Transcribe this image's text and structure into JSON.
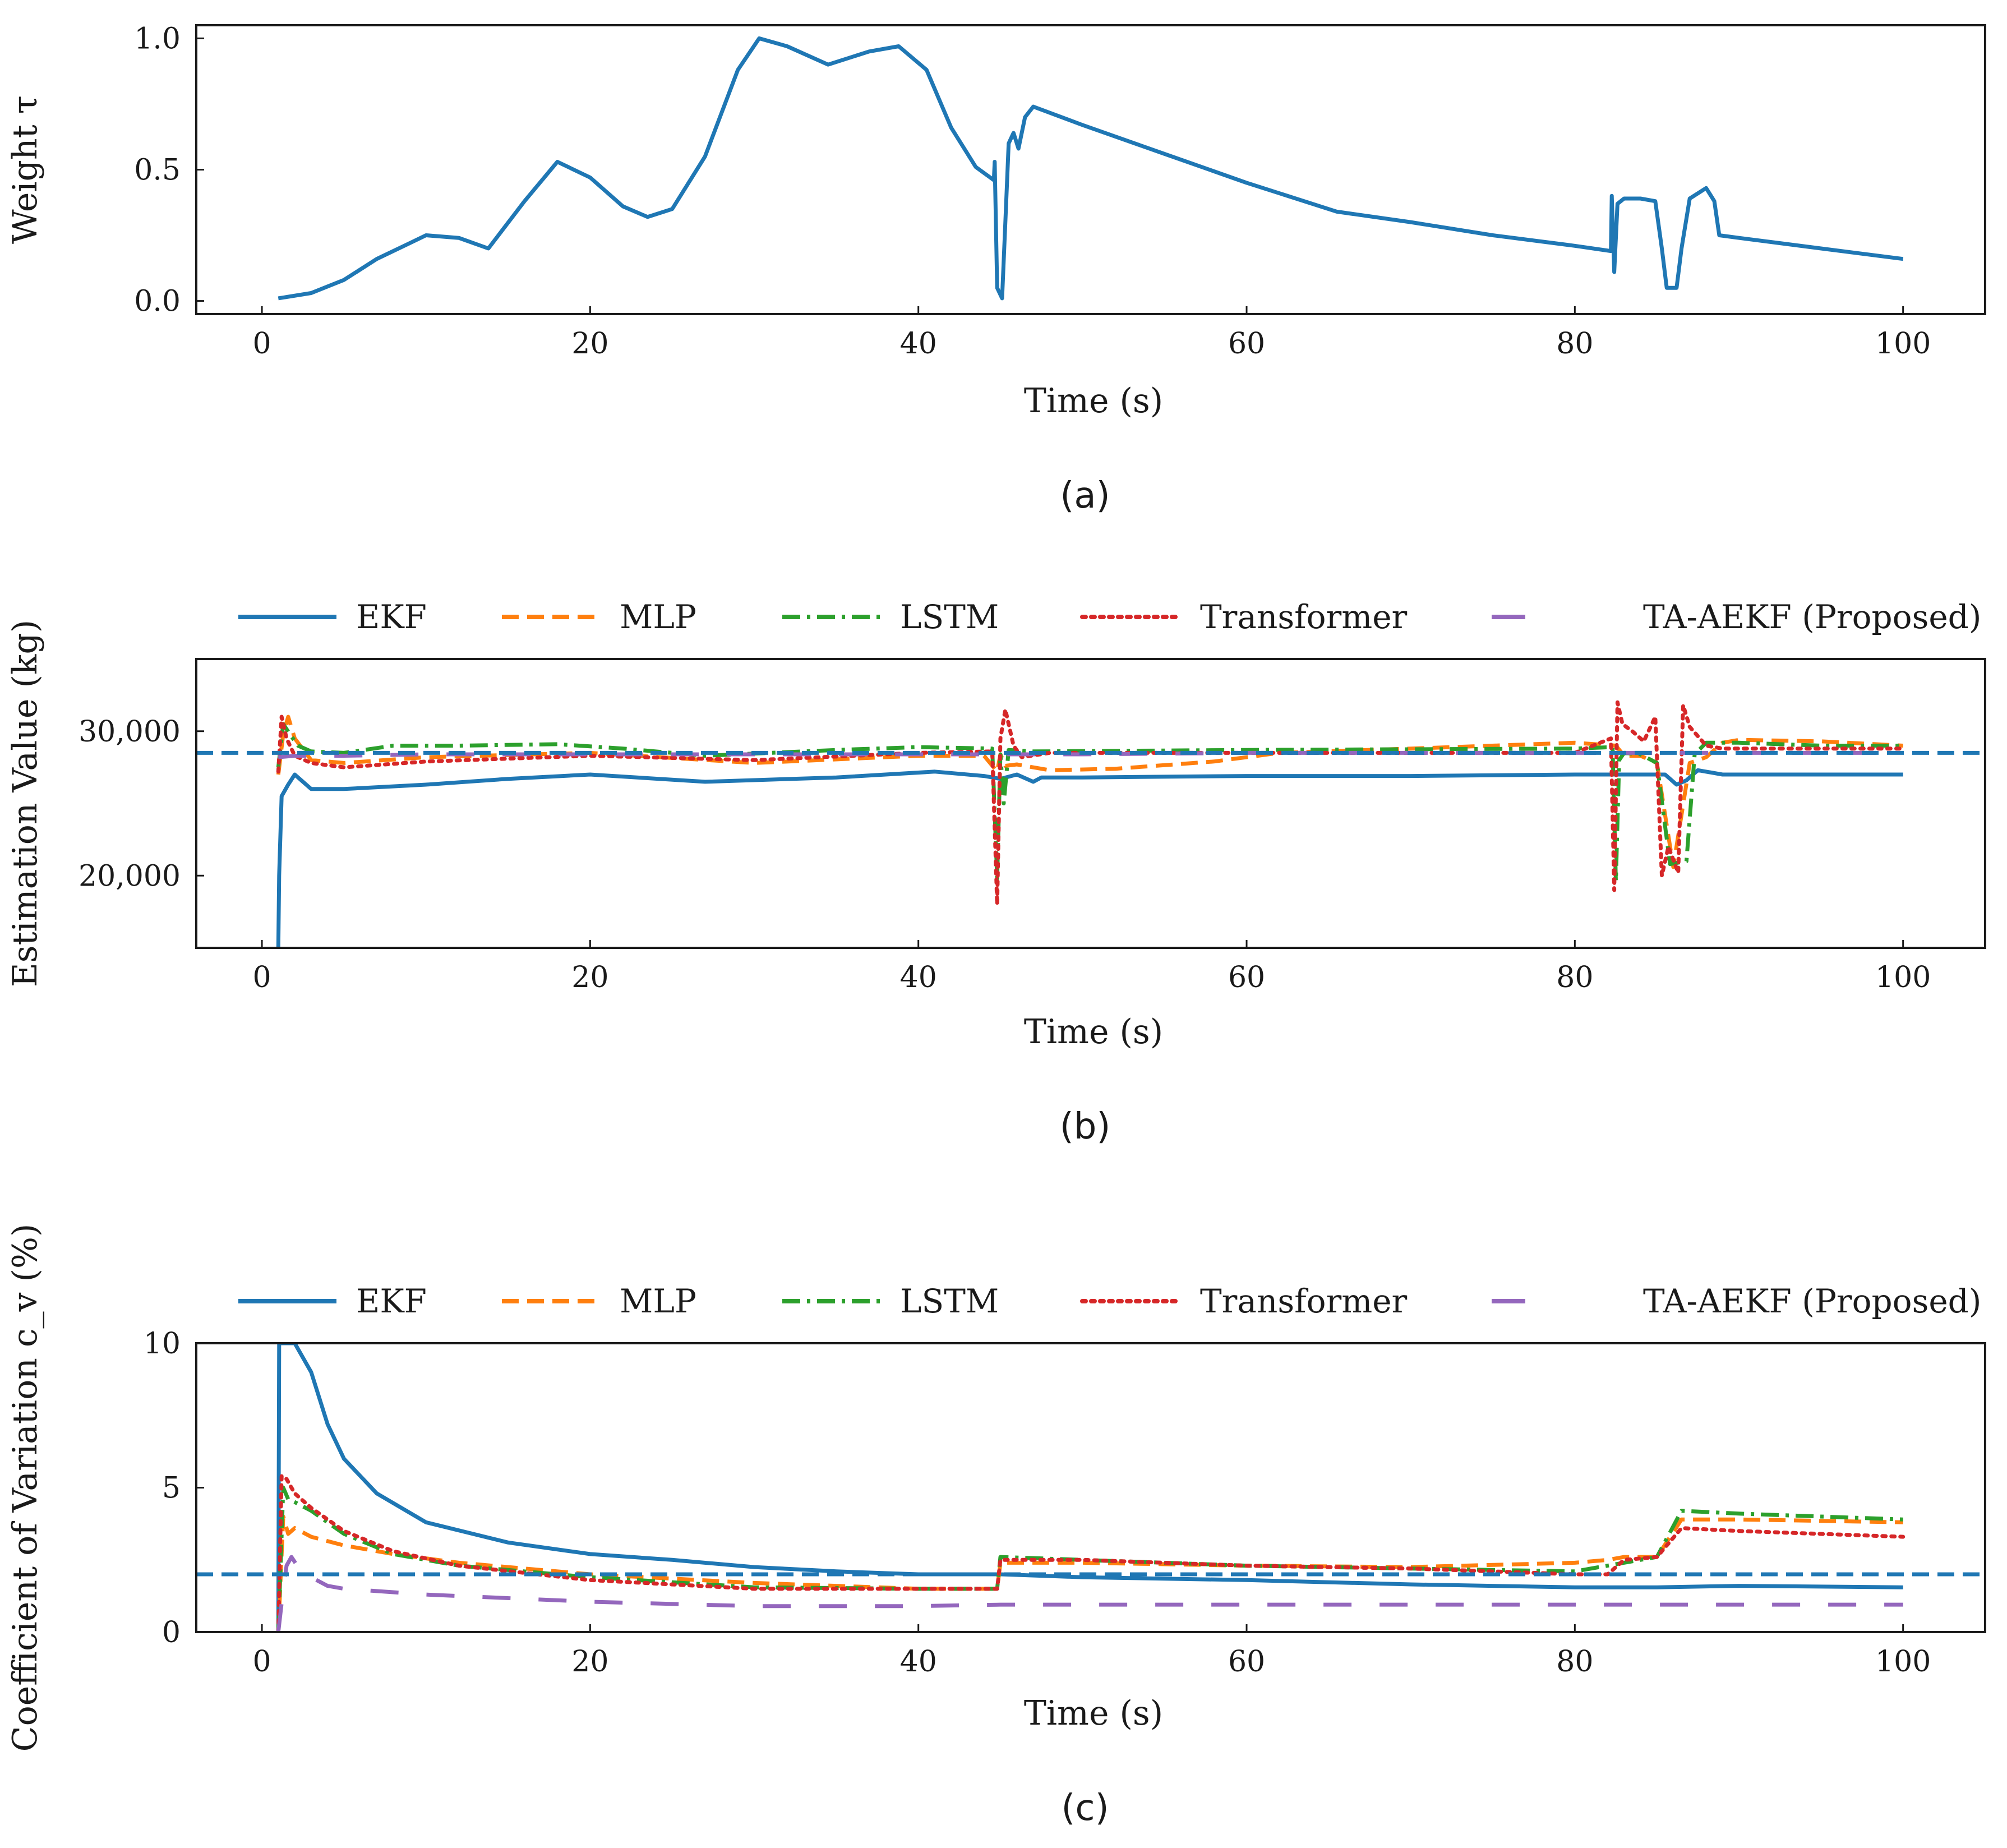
{
  "colors": {
    "EKF": "#1f77b4",
    "MLP": "#ff7f0e",
    "LSTM": "#2ca02c",
    "Transformer": "#d62728",
    "TA-AEKF (Proposed)": "#9467bd"
  },
  "legend": [
    "EKF",
    "MLP",
    "LSTM",
    "Transformer",
    "TA-AEKF (Proposed)"
  ],
  "chart_data": [
    {
      "id": "a",
      "type": "line",
      "panel_label": "(a)",
      "title": "",
      "xlabel": "Time (s)",
      "ylabel": "Weight τ",
      "xlim": [
        -4,
        105
      ],
      "ylim": [
        -0.05,
        1.05
      ],
      "xticks": [
        0,
        20,
        40,
        60,
        80,
        100
      ],
      "xtick_labels": [
        "0",
        "20",
        "40",
        "60",
        "80",
        "100"
      ],
      "yticks": [
        0.0,
        0.5,
        1.0
      ],
      "ytick_labels": [
        "0.0",
        "0.5",
        "1.0"
      ],
      "legend_visible": false,
      "series": [
        {
          "name": "EKF",
          "style": "solid",
          "x": [
            1,
            3,
            5,
            7,
            9,
            10,
            12,
            13.8,
            16,
            18,
            20,
            22,
            23.5,
            25,
            27,
            29,
            30.3,
            32,
            34.5,
            37,
            38.8,
            40.5,
            42,
            43.5,
            44.6,
            44.65,
            44.8,
            45.1,
            45.3,
            45.5,
            45.8,
            46.1,
            46.5,
            47,
            50,
            55,
            60,
            65.5,
            70,
            75,
            80,
            82.2,
            82.25,
            82.4,
            82.6,
            83,
            84,
            84.9,
            85.3,
            85.6,
            86.2,
            86.5,
            87,
            88,
            88.5,
            88.8,
            90,
            95,
            100
          ],
          "y": [
            0.01,
            0.03,
            0.08,
            0.16,
            0.22,
            0.25,
            0.24,
            0.2,
            0.38,
            0.53,
            0.47,
            0.36,
            0.32,
            0.35,
            0.55,
            0.88,
            1.0,
            0.97,
            0.9,
            0.95,
            0.97,
            0.88,
            0.66,
            0.51,
            0.46,
            0.53,
            0.05,
            0.01,
            0.3,
            0.6,
            0.64,
            0.58,
            0.7,
            0.74,
            0.67,
            0.56,
            0.45,
            0.34,
            0.3,
            0.25,
            0.21,
            0.19,
            0.4,
            0.11,
            0.37,
            0.39,
            0.39,
            0.38,
            0.2,
            0.05,
            0.05,
            0.2,
            0.39,
            0.43,
            0.38,
            0.25,
            0.24,
            0.2,
            0.16
          ]
        }
      ]
    },
    {
      "id": "b",
      "type": "line",
      "panel_label": "(b)",
      "title": "",
      "xlabel": "Time (s)",
      "ylabel": "Estimation Value (kg)",
      "xlim": [
        -4,
        105
      ],
      "ylim": [
        15000,
        35000
      ],
      "xticks": [
        0,
        20,
        40,
        60,
        80,
        100
      ],
      "xtick_labels": [
        "0",
        "20",
        "40",
        "60",
        "80",
        "100"
      ],
      "yticks": [
        20000,
        30000
      ],
      "ytick_labels": [
        "20,000",
        "30,000"
      ],
      "legend_visible": true,
      "reference_line": {
        "y": 28500,
        "color": "#1f77b4",
        "style": "dashed"
      },
      "series": [
        {
          "name": "EKF",
          "style": "solid",
          "x": [
            1,
            1.05,
            1.2,
            1.6,
            2,
            2.5,
            3,
            5,
            10,
            15,
            20,
            27,
            35,
            41,
            44,
            45,
            46,
            47,
            47.5,
            50,
            60,
            70,
            80,
            82,
            83,
            84,
            85,
            85.5,
            86.2,
            86.8,
            87.5,
            89,
            90,
            100
          ],
          "y": [
            15000,
            20000,
            25500,
            26300,
            27000,
            26500,
            26000,
            26000,
            26300,
            26700,
            27000,
            26500,
            26800,
            27200,
            26900,
            26700,
            27000,
            26500,
            26800,
            26800,
            26900,
            26900,
            27000,
            27000,
            27000,
            27000,
            27000,
            27000,
            26300,
            26600,
            27300,
            27000,
            27000,
            27000
          ]
        },
        {
          "name": "MLP",
          "style": "dashed",
          "x": [
            1,
            1.3,
            1.6,
            2,
            3,
            5,
            10,
            20,
            30,
            40,
            44,
            44.8,
            45,
            45.3,
            46,
            48,
            52,
            58,
            62,
            70,
            80,
            82.5,
            83,
            84,
            85,
            86,
            87,
            88,
            89,
            90,
            95,
            100
          ],
          "y": [
            27000,
            29800,
            31000,
            29500,
            28000,
            27800,
            28200,
            28500,
            27800,
            28300,
            28300,
            27200,
            28400,
            27600,
            27700,
            27300,
            27400,
            27900,
            28500,
            28800,
            29200,
            29000,
            28300,
            28300,
            27800,
            20600,
            27800,
            28200,
            29200,
            29400,
            29300,
            29000
          ]
        },
        {
          "name": "LSTM",
          "style": "dashdot",
          "x": [
            1,
            1.3,
            1.7,
            2.2,
            3,
            5,
            8,
            12,
            18,
            22,
            27,
            35,
            40,
            44.5,
            44.8,
            45,
            45.2,
            45.5,
            47,
            60,
            80,
            82.3,
            82.5,
            82.7,
            83,
            84,
            85,
            85.8,
            86.8,
            87.3,
            88,
            90,
            95,
            100
          ],
          "y": [
            27500,
            30500,
            29800,
            29000,
            28600,
            28500,
            29000,
            29000,
            29100,
            28800,
            28300,
            28700,
            28900,
            28800,
            19800,
            28400,
            25000,
            28700,
            28600,
            28700,
            28800,
            28900,
            19600,
            28000,
            28500,
            28400,
            27800,
            20800,
            21000,
            28400,
            29200,
            29200,
            29000,
            29000
          ]
        },
        {
          "name": "Transformer",
          "style": "dotted",
          "x": [
            1,
            1.2,
            1.5,
            2,
            3,
            5,
            10,
            20,
            30,
            40,
            44.5,
            44.8,
            45,
            45.3,
            45.8,
            46.3,
            48,
            60,
            80,
            82.2,
            82.4,
            82.6,
            82.9,
            83.5,
            84.2,
            84.9,
            85.3,
            85.7,
            86.3,
            86.6,
            87,
            88,
            89,
            90,
            95,
            100
          ],
          "y": [
            27200,
            31000,
            29500,
            28300,
            27800,
            27500,
            27900,
            28300,
            28000,
            28500,
            28600,
            18000,
            29500,
            31500,
            29000,
            28200,
            28500,
            28500,
            28500,
            29500,
            19000,
            32000,
            30500,
            30000,
            29300,
            31000,
            20000,
            22000,
            20200,
            31800,
            30300,
            29000,
            28800,
            28800,
            28800,
            28800
          ]
        },
        {
          "name": "TA-AEKF (Proposed)",
          "style": "longdash",
          "x": [
            1,
            2,
            5,
            10,
            20,
            30,
            40,
            50,
            60,
            70,
            80,
            90,
            100
          ],
          "y": [
            28200,
            28300,
            28300,
            28400,
            28400,
            28400,
            28400,
            28400,
            28500,
            28500,
            28500,
            28500,
            28500
          ]
        }
      ]
    },
    {
      "id": "c",
      "type": "line",
      "panel_label": "(c)",
      "title": "",
      "xlabel": "Time (s)",
      "ylabel": "Coefficient of Variation c_v (%)",
      "xlim": [
        -4,
        105
      ],
      "ylim": [
        0,
        10
      ],
      "xticks": [
        0,
        20,
        40,
        60,
        80,
        100
      ],
      "xtick_labels": [
        "0",
        "20",
        "40",
        "60",
        "80",
        "100"
      ],
      "yticks": [
        0,
        5,
        10
      ],
      "ytick_labels": [
        "0",
        "5",
        "10"
      ],
      "legend_visible": true,
      "reference_line": {
        "y": 2,
        "color": "#1f77b4",
        "style": "dashed"
      },
      "series": [
        {
          "name": "EKF",
          "style": "solid",
          "x": [
            1,
            1.05,
            1.1,
            1.5,
            2,
            3,
            4,
            5,
            7,
            10,
            15,
            20,
            25,
            30,
            35,
            40,
            44.8,
            45,
            50,
            60,
            70,
            80,
            85,
            90,
            100
          ],
          "y": [
            0,
            10,
            10,
            10,
            10,
            9,
            7.2,
            6,
            4.8,
            3.8,
            3.1,
            2.7,
            2.5,
            2.25,
            2.1,
            2.0,
            2.0,
            2.0,
            1.9,
            1.8,
            1.65,
            1.55,
            1.55,
            1.6,
            1.55
          ]
        },
        {
          "name": "MLP",
          "style": "dashed",
          "x": [
            1,
            1.3,
            1.6,
            2,
            3,
            5,
            8,
            12,
            20,
            30,
            40,
            44.8,
            45,
            50,
            60,
            70,
            80,
            82,
            83,
            85,
            86.5,
            90,
            100
          ],
          "y": [
            0,
            4,
            3.4,
            3.6,
            3.3,
            3,
            2.7,
            2.4,
            2.0,
            1.7,
            1.5,
            1.5,
            2.4,
            2.4,
            2.3,
            2.25,
            2.4,
            2.5,
            2.6,
            2.6,
            3.9,
            3.9,
            3.8
          ]
        },
        {
          "name": "LSTM",
          "style": "dashdot",
          "x": [
            1,
            1.3,
            1.6,
            2,
            3,
            5,
            8,
            12,
            20,
            30,
            40,
            44.8,
            45,
            50,
            60,
            70,
            80,
            85,
            86.5,
            90,
            100
          ],
          "y": [
            0,
            5,
            4.6,
            4.5,
            4.2,
            3.4,
            2.7,
            2.3,
            1.9,
            1.55,
            1.5,
            1.5,
            2.6,
            2.5,
            2.3,
            2.2,
            2.1,
            2.6,
            4.2,
            4.1,
            3.9
          ]
        },
        {
          "name": "Transformer",
          "style": "dotted",
          "x": [
            1,
            1.2,
            1.5,
            2,
            3,
            5,
            8,
            12,
            20,
            30,
            40,
            44.8,
            45,
            50,
            60,
            70,
            80,
            82,
            83,
            85,
            86.5,
            90,
            100
          ],
          "y": [
            0,
            5.4,
            5.3,
            4.8,
            4.3,
            3.5,
            2.8,
            2.3,
            1.8,
            1.5,
            1.5,
            1.5,
            2.5,
            2.5,
            2.3,
            2.2,
            2.0,
            2.0,
            2.5,
            2.6,
            3.6,
            3.5,
            3.3
          ]
        },
        {
          "name": "TA-AEKF (Proposed)",
          "style": "longdash",
          "x": [
            1,
            1.2,
            1.5,
            1.8,
            2.5,
            3,
            4,
            5,
            10,
            20,
            30,
            40,
            45,
            50,
            60,
            70,
            80,
            90,
            100
          ],
          "y": [
            0,
            1.0,
            2.3,
            2.6,
            2.0,
            1.9,
            1.6,
            1.5,
            1.3,
            1.05,
            0.9,
            0.9,
            0.95,
            0.95,
            0.95,
            0.95,
            0.95,
            0.95,
            0.95
          ]
        }
      ]
    }
  ]
}
